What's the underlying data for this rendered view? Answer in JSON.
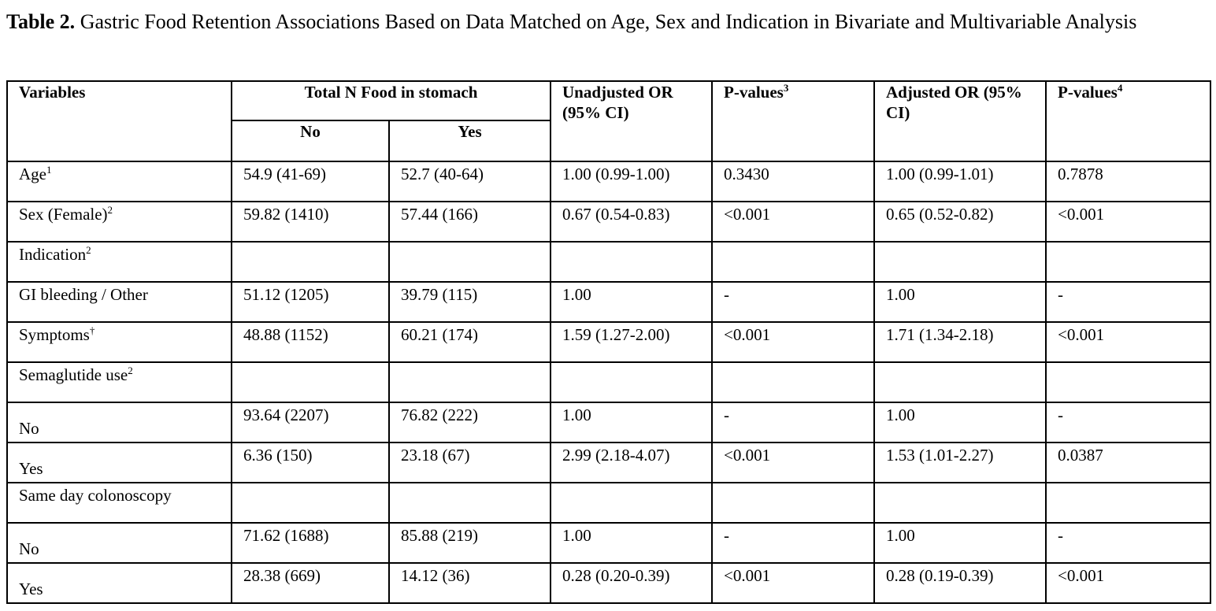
{
  "caption": {
    "label": "Table 2.",
    "text": " Gastric Food Retention Associations Based on Data Matched on Age, Sex and Indication in Bivariate and Multivariable Analysis"
  },
  "table": {
    "headers": {
      "variables": "Variables",
      "total_n_food": "Total N Food in stomach",
      "no": "No",
      "yes": "Yes",
      "unadjusted_or": "Unadjusted OR (95% CI)",
      "p_values_3": "P-values",
      "p_values_3_sup": "3",
      "adjusted_or": "Adjusted OR (95% CI)",
      "p_values_4": "P-values",
      "p_values_4_sup": "4"
    },
    "rows": [
      {
        "label": "Age",
        "sup": "1",
        "bold": true,
        "no": "54.9 (41-69)",
        "yes": "52.7 (40-64)",
        "unadj": "1.00 (0.99-1.00)",
        "p3": "0.3430",
        "adj": "1.00 (0.99-1.01)",
        "p4": "0.7878"
      },
      {
        "label": "Sex (Female)",
        "sup": "2",
        "bold": true,
        "no": "59.82 (1410)",
        "yes": "57.44 (166)",
        "unadj": "0.67 (0.54-0.83)",
        "p3": "<0.001",
        "adj": "0.65 (0.52-0.82)",
        "p4": "<0.001"
      },
      {
        "label": "Indication",
        "sup": "2",
        "bold": true,
        "no": "",
        "yes": "",
        "unadj": "",
        "p3": "",
        "adj": "",
        "p4": ""
      },
      {
        "label": "GI bleeding / Other",
        "sup": "",
        "bold": false,
        "no": "51.12 (1205)",
        "yes": "39.79 (115)",
        "unadj": "1.00",
        "p3": "-",
        "adj": "1.00",
        "p4": "-"
      },
      {
        "label": "Symptoms",
        "sup": "†",
        "bold": false,
        "no": "48.88 (1152)",
        "yes": "60.21 (174)",
        "unadj": "1.59 (1.27-2.00)",
        "p3": "<0.001",
        "adj": "1.71 (1.34-2.18)",
        "p4": "<0.001"
      },
      {
        "label": "Semaglutide use",
        "sup": "2",
        "bold": true,
        "no": "",
        "yes": "",
        "unadj": "",
        "p3": "",
        "adj": "",
        "p4": ""
      },
      {
        "label": "No",
        "sup": "",
        "bold": false,
        "low": true,
        "no": "93.64 (2207)",
        "yes": "76.82 (222)",
        "unadj": "1.00",
        "p3": "-",
        "adj": "1.00",
        "p4": "-"
      },
      {
        "label": "Yes",
        "sup": "",
        "bold": false,
        "low": true,
        "no": "6.36 (150)",
        "yes": "23.18 (67)",
        "unadj": "2.99 (2.18-4.07)",
        "p3": "<0.001",
        "adj": "1.53 (1.01-2.27)",
        "p4": "0.0387"
      },
      {
        "label": "Same day colonoscopy",
        "sup": "",
        "bold": true,
        "no": "",
        "yes": "",
        "unadj": "",
        "p3": "",
        "adj": "",
        "p4": ""
      },
      {
        "label": "No",
        "sup": "",
        "bold": false,
        "low": true,
        "no": "71.62 (1688)",
        "yes": "85.88 (219)",
        "unadj": "1.00",
        "p3": "-",
        "adj": "1.00",
        "p4": "-"
      },
      {
        "label": "Yes",
        "sup": "",
        "bold": false,
        "low": true,
        "no": "28.38 (669)",
        "yes": "14.12 (36)",
        "unadj": "0.28 (0.20-0.39)",
        "p3": "<0.001",
        "adj": "0.28 (0.19-0.39)",
        "p4": "<0.001"
      }
    ]
  }
}
